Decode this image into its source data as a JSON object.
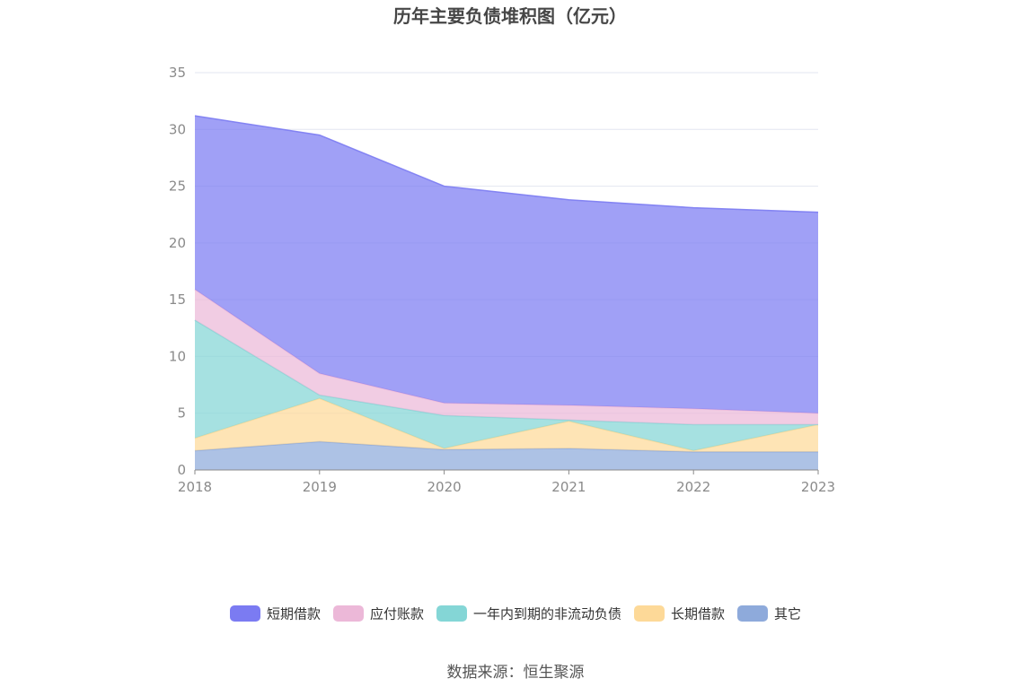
{
  "chart_data": {
    "type": "area",
    "stacked": true,
    "title": "历年主要负债堆积图（亿元）",
    "xlabel": "",
    "ylabel": "",
    "x": [
      "2018",
      "2019",
      "2020",
      "2021",
      "2022",
      "2023"
    ],
    "ylim": [
      0,
      35
    ],
    "yticks": [
      "0",
      "5",
      "10",
      "15",
      "20",
      "25",
      "30",
      "35"
    ],
    "grid": true,
    "legend_position": "bottom",
    "series": [
      {
        "name": "其它",
        "color": "#8eaadb",
        "values": [
          1.7,
          2.5,
          1.8,
          1.9,
          1.6,
          1.6
        ]
      },
      {
        "name": "长期借款",
        "color": "#fdd998",
        "values": [
          1.1,
          3.8,
          0.1,
          2.4,
          0.1,
          2.4
        ]
      },
      {
        "name": "一年内到期的非流动负债",
        "color": "#84d6d6",
        "values": [
          10.4,
          0.3,
          2.9,
          0.1,
          2.3,
          0.0
        ]
      },
      {
        "name": "应付账款",
        "color": "#ecb8d8",
        "values": [
          2.7,
          1.9,
          1.1,
          1.3,
          1.4,
          1.0
        ]
      },
      {
        "name": "短期借款",
        "color": "#7b7bf2",
        "values": [
          15.3,
          21.0,
          19.1,
          18.1,
          17.7,
          17.7
        ]
      }
    ],
    "legend_order": [
      "短期借款",
      "应付账款",
      "一年内到期的非流动负债",
      "长期借款",
      "其它"
    ]
  },
  "footer": {
    "source": "数据来源：恒生聚源"
  },
  "colors": {
    "axis": "#8a8a8a",
    "grid": "#e3e6f0",
    "title": "#464646"
  }
}
